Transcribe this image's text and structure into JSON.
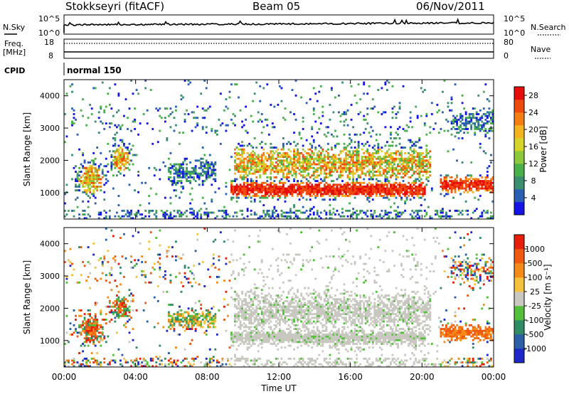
{
  "header": {
    "station": "Stokkseyri (fitACF)",
    "beam": "Beam 05",
    "date": "06/Nov/2011"
  },
  "status_panels": {
    "nsky_label": "N.Sky",
    "nsky_ticks": [
      "10^5",
      "10^0"
    ],
    "nsearch_label": "N.Search",
    "nsearch_ticks": [
      "10^5",
      "10^0"
    ],
    "freq_label": "Freq.",
    "freq_unit": "[MHz]",
    "freq_ticks": [
      "18",
      "8"
    ],
    "nave_label": "Nave",
    "nave_ticks": [
      "80",
      "0"
    ],
    "cpid_label": "CPID",
    "cpid_value": "normal 150"
  },
  "chart_data": [
    {
      "type": "heatmap",
      "name": "power",
      "ylabel": "Slant Range [km]",
      "xlabel": "Time UT",
      "xlim_hours": [
        0,
        24
      ],
      "ylim_km": [
        180,
        4500
      ],
      "yticks": [
        "1000",
        "2000",
        "3000",
        "4000"
      ],
      "colorbar": {
        "label": "Power [dB]",
        "ticks": [
          "4",
          "8",
          "12",
          "16",
          "20",
          "24",
          "28"
        ],
        "colors": [
          "#1414e6",
          "#2b5fb5",
          "#3a8f6e",
          "#49b04a",
          "#8cc83c",
          "#d6d628",
          "#f4b41e",
          "#f27e14",
          "#ee4a0e",
          "#e60c0a"
        ]
      }
    },
    {
      "type": "heatmap",
      "name": "velocity",
      "ylabel": "Slant Range [km]",
      "xlabel": "Time UT",
      "xlim_hours": [
        0,
        24
      ],
      "ylim_km": [
        180,
        4500
      ],
      "yticks": [
        "1000",
        "2000",
        "3000",
        "4000"
      ],
      "colorbar": {
        "label": "Velocity [m s⁻¹]",
        "ticks": [
          "1000",
          "500",
          "100",
          "25",
          "-25",
          "-100",
          "-500",
          "-1000"
        ],
        "colors": [
          "#1e28c8",
          "#2a5fa8",
          "#2f8c64",
          "#52c03a",
          "#c8c8c0",
          "#f4c23c",
          "#f48a1a",
          "#ee5a10",
          "#e61e0a"
        ]
      }
    }
  ],
  "xaxis": {
    "ticks": [
      "00:00",
      "04:00",
      "08:00",
      "12:00",
      "16:00",
      "20:00",
      "00:00"
    ],
    "label": "Time UT"
  }
}
